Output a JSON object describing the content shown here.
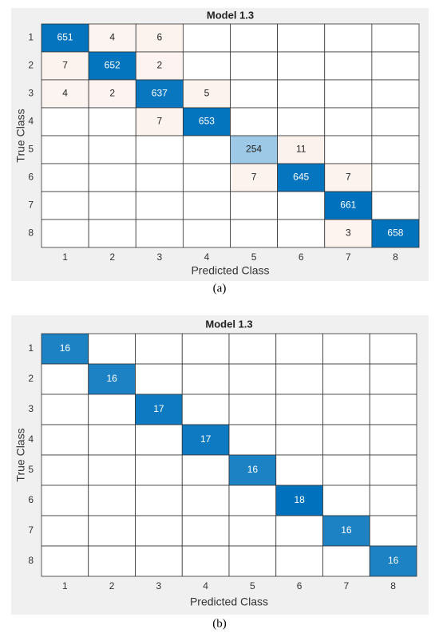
{
  "chart_data": [
    {
      "type": "confusion_matrix",
      "title": "Model 1.3",
      "x_label": "Predicted Class",
      "y_label": "True Class",
      "caption": "(a)",
      "x_categories": [
        "1",
        "2",
        "3",
        "4",
        "5",
        "6",
        "7",
        "8"
      ],
      "y_categories": [
        "1",
        "2",
        "3",
        "4",
        "5",
        "6",
        "7",
        "8"
      ],
      "diagonal_color": "#0072bd",
      "off_diagonal_color": "#d95319",
      "values": [
        [
          651,
          4,
          6,
          null,
          null,
          null,
          null,
          null
        ],
        [
          7,
          652,
          2,
          null,
          null,
          null,
          null,
          null
        ],
        [
          4,
          2,
          637,
          5,
          null,
          null,
          null,
          null
        ],
        [
          null,
          null,
          7,
          653,
          null,
          null,
          null,
          null
        ],
        [
          null,
          null,
          null,
          null,
          254,
          11,
          null,
          null
        ],
        [
          null,
          null,
          null,
          null,
          7,
          645,
          7,
          null
        ],
        [
          null,
          null,
          null,
          null,
          null,
          null,
          661,
          null
        ],
        [
          null,
          null,
          null,
          null,
          null,
          null,
          3,
          658
        ]
      ]
    },
    {
      "type": "confusion_matrix",
      "title": "Model 1.3",
      "x_label": "Predicted Class",
      "y_label": "True Class",
      "caption": "(b)",
      "x_categories": [
        "1",
        "2",
        "3",
        "4",
        "5",
        "6",
        "7",
        "8"
      ],
      "y_categories": [
        "1",
        "2",
        "3",
        "4",
        "5",
        "6",
        "7",
        "8"
      ],
      "diagonal_color": "#0072bd",
      "off_diagonal_color": "#d95319",
      "values": [
        [
          16,
          null,
          null,
          null,
          null,
          null,
          null,
          null
        ],
        [
          null,
          16,
          null,
          null,
          null,
          null,
          null,
          null
        ],
        [
          null,
          null,
          17,
          null,
          null,
          null,
          null,
          null
        ],
        [
          null,
          null,
          null,
          17,
          null,
          null,
          null,
          null
        ],
        [
          null,
          null,
          null,
          null,
          16,
          null,
          null,
          null
        ],
        [
          null,
          null,
          null,
          null,
          null,
          18,
          null,
          null
        ],
        [
          null,
          null,
          null,
          null,
          null,
          null,
          16,
          null
        ],
        [
          null,
          null,
          null,
          null,
          null,
          null,
          null,
          16
        ]
      ]
    }
  ]
}
